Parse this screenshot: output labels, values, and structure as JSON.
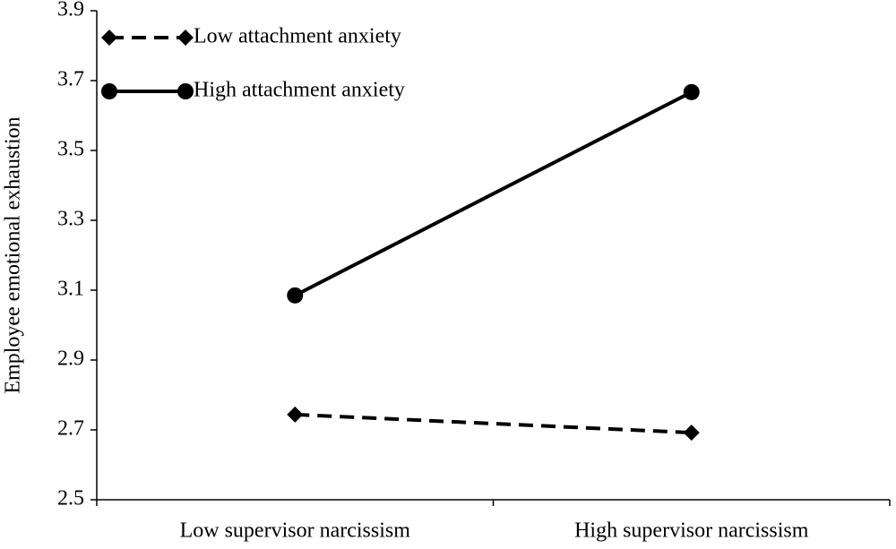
{
  "chart_data": {
    "type": "line",
    "y_label": "Employee emotional exhaustion",
    "categories": [
      "Low supervisor narcissism",
      "High supervisor narcissism"
    ],
    "series": [
      {
        "name": "Low attachment anxiety",
        "color": "#000000",
        "line_style": "dashed",
        "marker": "diamond",
        "values": [
          2.744,
          2.692
        ]
      },
      {
        "name": "High attachment anxiety",
        "color": "#000000",
        "line_style": "solid",
        "marker": "circle",
        "values": [
          3.085,
          3.667
        ]
      }
    ],
    "ylim": [
      2.5,
      3.9
    ],
    "yticks": [
      2.5,
      2.7,
      2.9,
      3.1,
      3.3,
      3.5,
      3.7,
      3.9
    ],
    "grid": false,
    "legend": "top-left"
  }
}
